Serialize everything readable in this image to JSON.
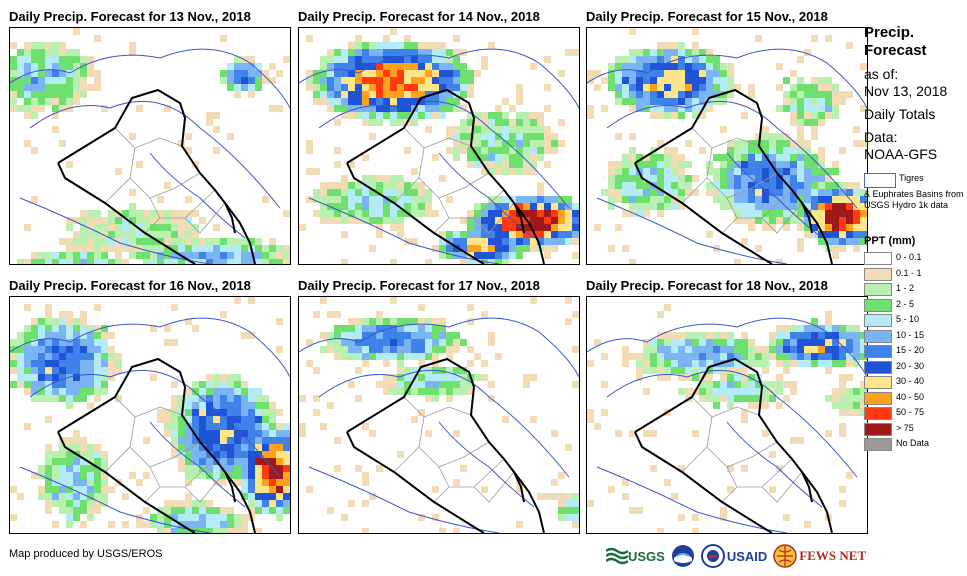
{
  "panels": [
    {
      "title": "Daily Precip. Forecast for 13 Nov., 2018",
      "day": 0
    },
    {
      "title": "Daily Precip. Forecast for 14 Nov., 2018",
      "day": 1
    },
    {
      "title": "Daily Precip. Forecast for 15 Nov., 2018",
      "day": 2
    },
    {
      "title": "Daily Precip. Forecast for 16 Nov., 2018",
      "day": 3
    },
    {
      "title": "Daily Precip. Forecast for 17 Nov., 2018",
      "day": 4
    },
    {
      "title": "Daily Precip. Forecast for 18 Nov., 2018",
      "day": 5
    }
  ],
  "legend": {
    "title": "Precip. Forecast",
    "as_of_label": "as of:",
    "as_of_date": "Nov 13, 2018",
    "period": "Daily Totals",
    "data_label": "Data:",
    "data_source": "NOAA-GFS",
    "basin_label": "Tigres",
    "basin_note": "& Euphrates Basins from USGS Hydro 1k data",
    "ppt_title": "PPT (mm)",
    "classes": [
      {
        "label": "0 - 0.1",
        "color": "#ffffff"
      },
      {
        "label": "0.1 - 1",
        "color": "#f2dcb5"
      },
      {
        "label": "1 - 2",
        "color": "#b9f0b0"
      },
      {
        "label": "2 - 5",
        "color": "#6ee06e"
      },
      {
        "label": "5 - 10",
        "color": "#b3ecf7"
      },
      {
        "label": "10 - 15",
        "color": "#7ab4f2"
      },
      {
        "label": "15 - 20",
        "color": "#3f83ea"
      },
      {
        "label": "20 - 30",
        "color": "#1f54d6"
      },
      {
        "label": "30 - 40",
        "color": "#ffe58a"
      },
      {
        "label": "40 - 50",
        "color": "#ffa21a"
      },
      {
        "label": "50 - 75",
        "color": "#ff3a10"
      },
      {
        "label": "> 75",
        "color": "#a01818"
      },
      {
        "label": "No Data",
        "color": "#9a9a9a"
      }
    ]
  },
  "footer": {
    "credit": "Map produced by USGS/EROS",
    "logos": [
      "USGS",
      "NOAA",
      "USAID",
      "FEWS NET"
    ]
  }
}
